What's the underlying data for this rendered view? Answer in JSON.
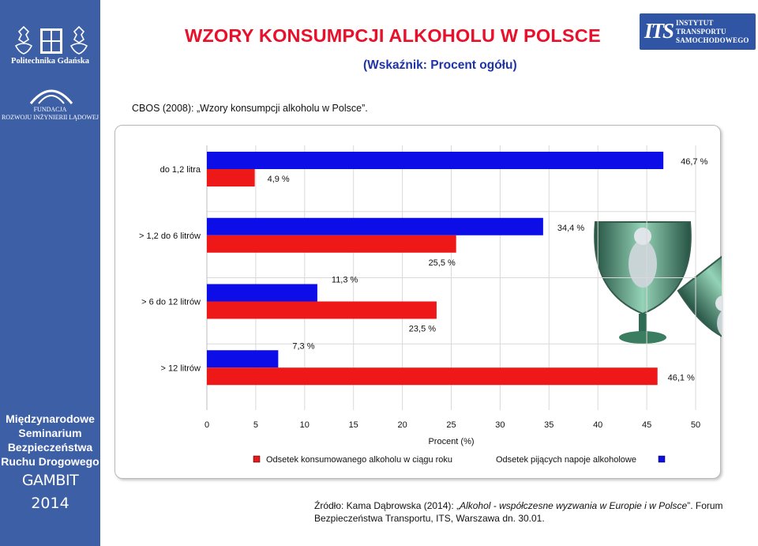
{
  "sidebar": {
    "logo_name": "Politechnika Gdańska",
    "foundation": [
      "FUNDACJA",
      "ROZWOJU INŻYNIERII LĄDOWEJ"
    ],
    "seminar": [
      "Międzynarodowe",
      "Seminarium",
      "Bezpieczeństwa",
      "Ruchu Drogowego"
    ],
    "event": "GAMBIT",
    "year": "2014"
  },
  "header": {
    "title": "WZORY KONSUMPCJI ALKOHOLU W POLSCE",
    "subtitle": "(Wskaźnik: Procent ogółu)",
    "its_logo": [
      "INSTYTUT",
      "TRANSPORTU",
      "SAMOCHODOWEGO"
    ],
    "its_mark": "ITS"
  },
  "source_top": "CBOS (2008): „Wzory konsumpcji alkoholu w Polsce”.",
  "source_bottom": {
    "prefix": "Źródło: Kama Dąbrowska (2014): „",
    "italic": "Alkohol - współczesne wyzwania w Europie i w Polsce",
    "suffix": "”. Forum Bezpieczeństwa Transportu, ITS, Warszawa dn. 30.01."
  },
  "colors": {
    "red": "#ee1818",
    "blue": "#0d0de8",
    "sidebar": "#3d5fa6",
    "title": "#e8102a",
    "subtitle": "#1f33a8"
  },
  "chart_data": {
    "type": "bar",
    "orientation": "horizontal",
    "categories": [
      "do 1,2 litra",
      "> 1,2 do 6 litrów",
      "> 6  do 12 litrów",
      "> 12 litrów"
    ],
    "series": [
      {
        "name": "Odsetek konsumowanego alkoholu w ciągu roku",
        "color": "#ee1818",
        "values": [
          4.9,
          25.5,
          23.5,
          46.1
        ],
        "labels": [
          "4,9 %",
          "25,5 %",
          "23,5 %",
          "46,1 %"
        ]
      },
      {
        "name": "Odsetek pijących napoje alkoholowe",
        "color": "#0d0de8",
        "values": [
          46.7,
          34.4,
          11.3,
          7.3
        ],
        "labels": [
          "46,7 %",
          "34,4 %",
          "11,3 %",
          "7,3 %"
        ]
      }
    ],
    "xlabel": "Procent (%)",
    "xlim": [
      0,
      50
    ],
    "xticks": [
      "0",
      "5",
      "10",
      "15",
      "20",
      "25",
      "30",
      "35",
      "40",
      "45",
      "50"
    ],
    "grid": true,
    "legend": "bottom"
  }
}
